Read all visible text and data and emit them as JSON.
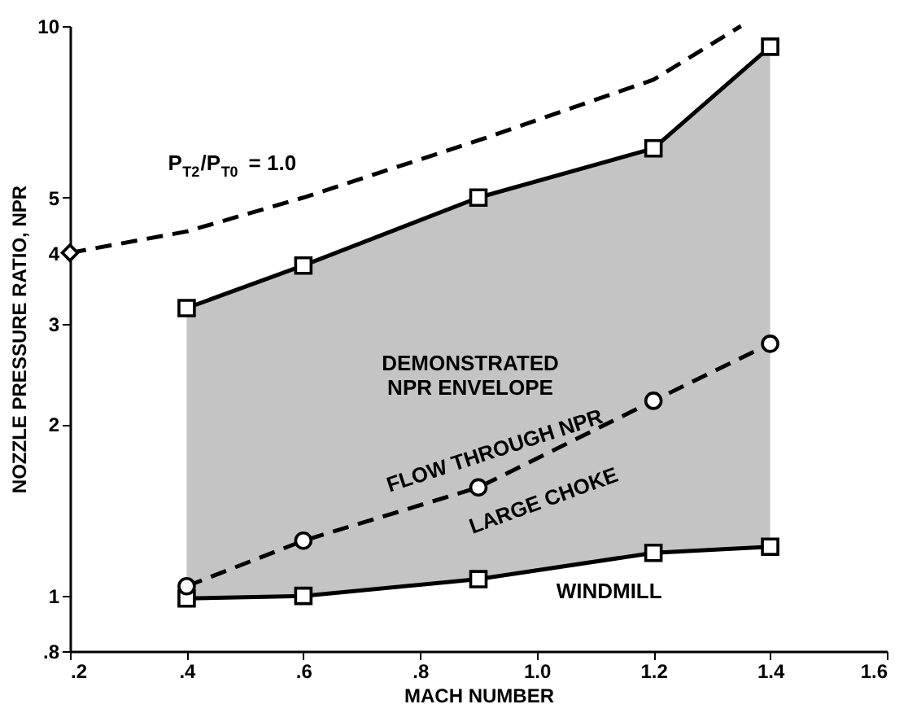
{
  "chart_data": {
    "type": "line",
    "xlabel": "MACH NUMBER",
    "ylabel": "NOZZLE PRESSURE RATIO, NPR",
    "log": "y",
    "grid": false,
    "xlim": [
      0.2,
      1.6
    ],
    "ylim": [
      0.8,
      10
    ],
    "xticks": [
      {
        "value": 0.2,
        "label": ".2"
      },
      {
        "value": 0.4,
        "label": ".4"
      },
      {
        "value": 0.6,
        "label": ".6"
      },
      {
        "value": 0.8,
        "label": ".8"
      },
      {
        "value": 1.0,
        "label": "1.0"
      },
      {
        "value": 1.2,
        "label": "1.2"
      },
      {
        "value": 1.4,
        "label": "1.4"
      },
      {
        "value": 1.6,
        "label": "1.6"
      }
    ],
    "yticks": [
      {
        "value": 0.8,
        "label": ".8"
      },
      1,
      2,
      3,
      4,
      5,
      10
    ],
    "series": [
      {
        "color": "#000000",
        "marker": "square",
        "line_style": "solid",
        "x": [
          0.4,
          0.6,
          0.9,
          1.2,
          1.4
        ],
        "values": [
          3.2,
          3.8,
          5.0,
          6.1,
          9.2
        ],
        "lower": [
          0.99,
          1.0,
          1.07,
          1.19,
          1.22
        ],
        "upper": [
          3.2,
          3.8,
          5.0,
          6.1,
          9.2
        ]
      },
      {
        "color": "#000000",
        "marker": "square",
        "line_style": "solid",
        "x": [
          0.4,
          0.6,
          0.9,
          1.2,
          1.4
        ],
        "values": [
          0.99,
          1.0,
          1.07,
          1.19,
          1.22
        ]
      },
      {
        "color": "#000000",
        "marker": "circle",
        "line_style": "dashed",
        "x": [
          0.4,
          0.6,
          0.9,
          1.2,
          1.4
        ],
        "values": [
          1.04,
          1.25,
          1.55,
          2.2,
          2.77
        ]
      },
      {
        "color": "#000000",
        "marker": "none",
        "line_style": "dashed",
        "x": [
          0.2,
          0.4,
          0.6,
          0.9,
          1.2,
          1.35
        ],
        "values": [
          4.0,
          4.36,
          5.0,
          6.3,
          8.05,
          10
        ]
      },
      {
        "type": "scatter",
        "color": "#000000",
        "marker": "diamond",
        "x": [
          0.2
        ],
        "values": [
          4.0
        ]
      }
    ],
    "annotations": [
      "P$_{T2}$/P$_{T0}$ = 1.0",
      "DEMONSTRATED\nNPR ENVELOPE",
      "FLOW THROUGH NPR",
      "LARGE CHOKE",
      "WINDMILL"
    ]
  }
}
